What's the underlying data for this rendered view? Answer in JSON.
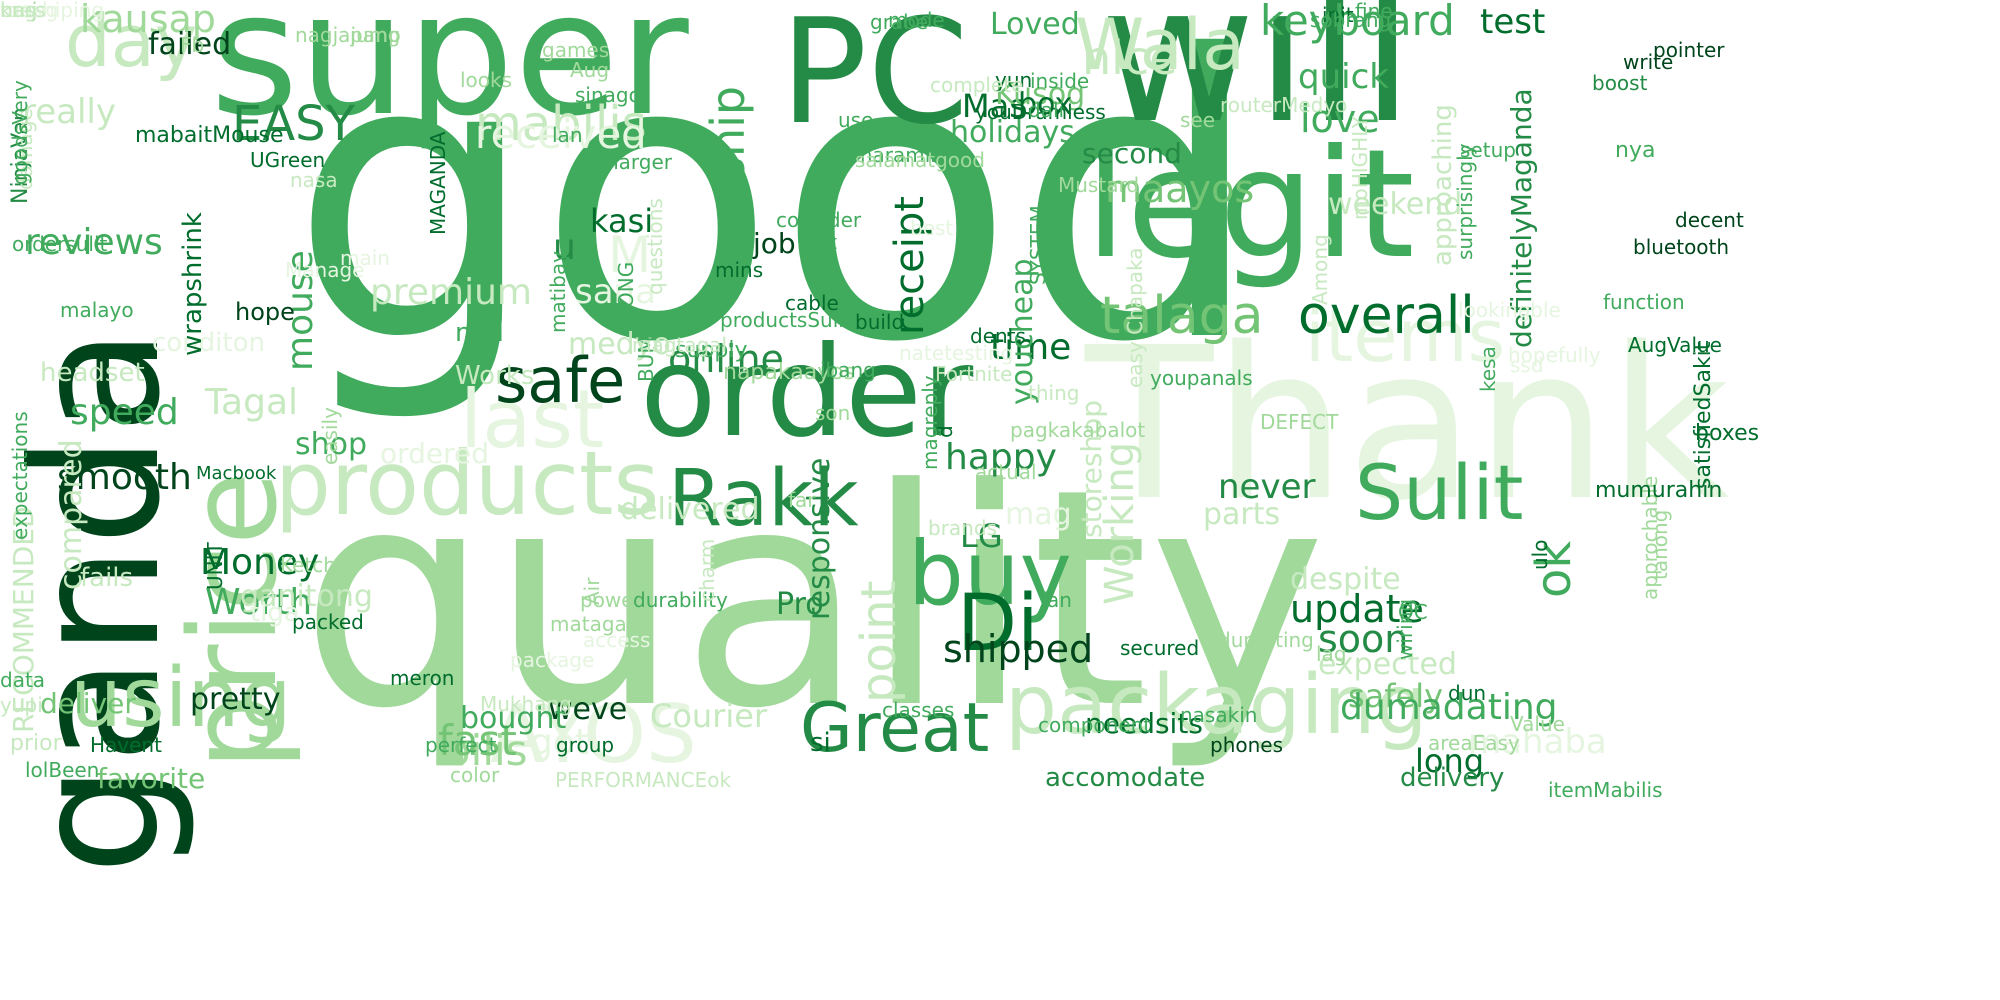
{
  "palette": {
    "darkest": "#00441b",
    "dark": "#006d2c",
    "mid_dark": "#238b45",
    "mid": "#41ab5d",
    "mid_light": "#74c476",
    "light": "#a1d99b",
    "lighter": "#c7e9c0",
    "lightest": "#e5f5e0",
    "background": "#ffffff"
  },
  "words": [
    {
      "text": "good",
      "color": "#41ab5d"
    },
    {
      "text": "quality",
      "color": "#a1d99b"
    },
    {
      "text": "ganda",
      "color": "#00441b"
    },
    {
      "text": "super",
      "color": "#41ab5d"
    },
    {
      "text": "Thank",
      "color": "#e5f5e0"
    },
    {
      "text": "will",
      "color": "#238b45"
    },
    {
      "text": "PC",
      "color": "#238b45"
    },
    {
      "text": "legit",
      "color": "#41ab5d"
    },
    {
      "text": "order",
      "color": "#238b45"
    },
    {
      "text": "price",
      "color": "#a1d99b"
    },
    {
      "text": "products",
      "color": "#c7e9c0"
    },
    {
      "text": "packaging",
      "color": "#c7e9c0"
    },
    {
      "text": "Great",
      "color": "#238b45"
    },
    {
      "text": "buy",
      "color": "#41ab5d"
    },
    {
      "text": "using",
      "color": "#a1d99b"
    },
    {
      "text": "Rakk",
      "color": "#238b45"
    },
    {
      "text": "Sulit",
      "color": "#41ab5d"
    },
    {
      "text": "Di",
      "color": "#006d2c"
    },
    {
      "text": "day",
      "color": "#c7e9c0"
    },
    {
      "text": "Wala",
      "color": "#c7e9c0"
    },
    {
      "text": "last",
      "color": "#e5f5e0"
    },
    {
      "text": "safe",
      "color": "#00441b"
    },
    {
      "text": "items",
      "color": "#e5f5e0"
    },
    {
      "text": "talaga",
      "color": "#74c476"
    },
    {
      "text": "overall",
      "color": "#006d2c"
    },
    {
      "text": "keyboard",
      "color": "#41ab5d"
    },
    {
      "text": "test",
      "color": "#006d2c"
    },
    {
      "text": "AYOS",
      "color": "#e5f5e0"
    },
    {
      "text": "Working",
      "color": "#c7e9c0"
    },
    {
      "text": "mabilis",
      "color": "#c7e9c0"
    },
    {
      "text": "EASY",
      "color": "#238b45"
    },
    {
      "text": "nice",
      "color": "#c7e9c0"
    },
    {
      "text": "ok",
      "color": "#41ab5d"
    },
    {
      "text": "love",
      "color": "#41ab5d"
    },
    {
      "text": "ship",
      "color": "#41ab5d"
    },
    {
      "text": "received",
      "color": "#e5f5e0"
    },
    {
      "text": "maayos",
      "color": "#74c476"
    },
    {
      "text": "receipt",
      "color": "#006d2c"
    },
    {
      "text": "online",
      "color": "#238b45"
    },
    {
      "text": "time",
      "color": "#006d2c"
    },
    {
      "text": "point",
      "color": "#c7e9c0"
    },
    {
      "text": "update",
      "color": "#006d2c"
    },
    {
      "text": "soon",
      "color": "#238b45"
    },
    {
      "text": "shipped",
      "color": "#00441b"
    },
    {
      "text": "Money",
      "color": "#006d2c"
    },
    {
      "text": "Worth",
      "color": "#41ab5d"
    },
    {
      "text": "smooth",
      "color": "#00441b"
    },
    {
      "text": "speed",
      "color": "#41ab5d"
    },
    {
      "text": "reviews",
      "color": "#41ab5d"
    },
    {
      "text": "premium",
      "color": "#c7e9c0"
    },
    {
      "text": "mouse",
      "color": "#41ab5d"
    },
    {
      "text": "happy",
      "color": "#238b45"
    },
    {
      "text": "Tagal",
      "color": "#c7e9c0"
    },
    {
      "text": "bilis",
      "color": "#a1d99b"
    },
    {
      "text": "fast",
      "color": "#74c476"
    },
    {
      "text": "pretty",
      "color": "#00441b"
    },
    {
      "text": "Courier",
      "color": "#c7e9c0"
    },
    {
      "text": "weve",
      "color": "#00441b"
    },
    {
      "text": "kausap",
      "color": "#a1d99b"
    },
    {
      "text": "Mas",
      "color": "#006d2c"
    },
    {
      "text": "holidays",
      "color": "#41ab5d"
    },
    {
      "text": "Kusog",
      "color": "#74c476"
    },
    {
      "text": "Loved",
      "color": "#41ab5d"
    },
    {
      "text": "box",
      "color": "#006d2c"
    },
    {
      "text": "second",
      "color": "#238b45"
    },
    {
      "text": "failed",
      "color": "#00441b"
    },
    {
      "text": "really",
      "color": "#c7e9c0"
    },
    {
      "text": "quick",
      "color": "#41ab5d"
    },
    {
      "text": "weekend",
      "color": "#c7e9c0"
    },
    {
      "text": "approaching",
      "color": "#c7e9c0"
    },
    {
      "text": "definitelyMaganda",
      "color": "#238b45"
    },
    {
      "text": "kasi",
      "color": "#006d2c"
    },
    {
      "text": "u",
      "color": "#238b45"
    },
    {
      "text": "M",
      "color": "#e5f5e0"
    },
    {
      "text": "sana",
      "color": "#e5f5e0"
    },
    {
      "text": "job",
      "color": "#00441b"
    },
    {
      "text": "youcheap",
      "color": "#41ab5d"
    },
    {
      "text": "storeshop",
      "color": "#c7e9c0"
    },
    {
      "text": "never",
      "color": "#238b45"
    },
    {
      "text": "parts",
      "color": "#c7e9c0"
    },
    {
      "text": "despite",
      "color": "#c7e9c0"
    },
    {
      "text": "expected",
      "color": "#c7e9c0"
    },
    {
      "text": "safely",
      "color": "#74c476"
    },
    {
      "text": "long",
      "color": "#006d2c"
    },
    {
      "text": "LG",
      "color": "#238b45"
    },
    {
      "text": "Pro",
      "color": "#238b45"
    },
    {
      "text": "responsive",
      "color": "#238b45"
    },
    {
      "text": "needsits",
      "color": "#006d2c"
    },
    {
      "text": "accomodate",
      "color": "#238b45"
    },
    {
      "text": "delivery",
      "color": "#238b45"
    },
    {
      "text": "si",
      "color": "#006d2c"
    },
    {
      "text": "got",
      "color": "#e5f5e0"
    },
    {
      "text": "bought",
      "color": "#41ab5d"
    },
    {
      "text": "favorite",
      "color": "#74c476"
    },
    {
      "text": "deliver",
      "color": "#74c476"
    },
    {
      "text": "RECOMMENDED",
      "color": "#c7e9c0"
    },
    {
      "text": "compared",
      "color": "#c7e9c0"
    },
    {
      "text": "headset",
      "color": "#c7e9c0"
    },
    {
      "text": "shop",
      "color": "#41ab5d"
    },
    {
      "text": "ordered",
      "color": "#e5f5e0"
    },
    {
      "text": "delivered",
      "color": "#c7e9c0"
    },
    {
      "text": "dumadating",
      "color": "#41ab5d"
    },
    {
      "text": "mahaba",
      "color": "#e5f5e0"
    },
    {
      "text": "mag",
      "color": "#e5f5e0"
    },
    {
      "text": "nad",
      "color": "#41ab5d"
    },
    {
      "text": "Works",
      "color": "#c7e9c0"
    },
    {
      "text": "medyo",
      "color": "#c7e9c0"
    },
    {
      "text": "ganitong",
      "color": "#c7e9c0"
    },
    {
      "text": "tlga",
      "color": "#e5f5e0"
    },
    {
      "text": "fails",
      "color": "#c7e9c0"
    },
    {
      "text": "prior",
      "color": "#c7e9c0"
    },
    {
      "text": "conditon",
      "color": "#e5f5e0"
    },
    {
      "text": "hope",
      "color": "#00441b"
    },
    {
      "text": "wrapshrink",
      "color": "#006d2c"
    },
    {
      "text": "NinjaVan",
      "color": "#238b45"
    },
    {
      "text": "ordersulit",
      "color": "#41ab5d"
    },
    {
      "text": "mabaitMouse",
      "color": "#006d2c"
    },
    {
      "text": "UGreen",
      "color": "#006d2c"
    },
    {
      "text": "maraming",
      "color": "#41ab5d"
    },
    {
      "text": "charger",
      "color": "#41ab5d"
    },
    {
      "text": "consider",
      "color": "#41ab5d"
    },
    {
      "text": "yet",
      "color": "#41ab5d"
    },
    {
      "text": "cable",
      "color": "#006d2c"
    },
    {
      "text": "build",
      "color": "#006d2c"
    },
    {
      "text": "SYSTEM",
      "color": "#41ab5d"
    },
    {
      "text": "BUMILI",
      "color": "#41ab5d"
    },
    {
      "text": "supply",
      "color": "#41ab5d"
    },
    {
      "text": "napakaayos",
      "color": "#a1d99b"
    },
    {
      "text": "ibang",
      "color": "#41ab5d"
    },
    {
      "text": "dents",
      "color": "#006d2c"
    },
    {
      "text": "youpanals",
      "color": "#41ab5d"
    },
    {
      "text": "DEFECT",
      "color": "#a1d99b"
    },
    {
      "text": "kesa",
      "color": "#41ab5d"
    },
    {
      "text": "ulo",
      "color": "#006d2c"
    },
    {
      "text": "tanong",
      "color": "#a1d99b"
    },
    {
      "text": "approchable",
      "color": "#a1d99b"
    },
    {
      "text": "mumurahin",
      "color": "#006d2c"
    },
    {
      "text": "satisfiedSakit",
      "color": "#006d2c"
    },
    {
      "text": "boxes",
      "color": "#006d2c"
    },
    {
      "text": "AugValue",
      "color": "#006d2c"
    },
    {
      "text": "function",
      "color": "#41ab5d"
    },
    {
      "text": "bluetooth",
      "color": "#00441b"
    },
    {
      "text": "decent",
      "color": "#00441b"
    },
    {
      "text": "write",
      "color": "#00441b"
    },
    {
      "text": "nya",
      "color": "#41ab5d"
    },
    {
      "text": "pointer",
      "color": "#00441b"
    },
    {
      "text": "boost",
      "color": "#238b45"
    },
    {
      "text": "fine",
      "color": "#41ab5d"
    },
    {
      "text": "init",
      "color": "#006d2c"
    },
    {
      "text": "sobrang",
      "color": "#41ab5d"
    },
    {
      "text": "yun",
      "color": "#006d2c"
    },
    {
      "text": "inside",
      "color": "#41ab5d"
    },
    {
      "text": "Mustard",
      "color": "#a1d99b"
    },
    {
      "text": "youDramless",
      "color": "#006d2c"
    },
    {
      "text": "see",
      "color": "#a1d99b"
    },
    {
      "text": "use",
      "color": "#41ab5d"
    },
    {
      "text": "mode",
      "color": "#41ab5d"
    },
    {
      "text": "dali",
      "color": "#41ab5d"
    },
    {
      "text": "grabe",
      "color": "#41ab5d"
    },
    {
      "text": "sinagot",
      "color": "#41ab5d"
    },
    {
      "text": "lan",
      "color": "#41ab5d"
    },
    {
      "text": "Aug",
      "color": "#a1d99b"
    },
    {
      "text": "games",
      "color": "#a1d99b"
    },
    {
      "text": "looks",
      "color": "#a1d99b"
    },
    {
      "text": "nagjajump",
      "color": "#a1d99b"
    },
    {
      "text": "Fb",
      "color": "#a1d99b"
    },
    {
      "text": "damage",
      "color": "#c7e9c0"
    },
    {
      "text": "pang",
      "color": "#a1d99b"
    },
    {
      "text": "malayo",
      "color": "#41ab5d"
    },
    {
      "text": "goodsVery",
      "color": "#41ab5d"
    },
    {
      "text": "MAGANDA",
      "color": "#006d2c"
    },
    {
      "text": "PONG",
      "color": "#41ab5d"
    },
    {
      "text": "questions",
      "color": "#c7e9c0"
    },
    {
      "text": "mins",
      "color": "#006d2c"
    },
    {
      "text": "productsSulit",
      "color": "#41ab5d"
    },
    {
      "text": "magtagal",
      "color": "#c7e9c0"
    },
    {
      "text": "matibay",
      "color": "#41ab5d"
    },
    {
      "text": "easily",
      "color": "#a1d99b"
    },
    {
      "text": "expectations",
      "color": "#41ab5d"
    },
    {
      "text": "Macbook",
      "color": "#006d2c"
    },
    {
      "text": "Ketchup",
      "color": "#a1d99b"
    },
    {
      "text": "UNIT",
      "color": "#006d2c"
    },
    {
      "text": "data",
      "color": "#41ab5d"
    },
    {
      "text": "packed",
      "color": "#006d2c"
    },
    {
      "text": "perfect",
      "color": "#41ab5d"
    },
    {
      "text": "matagal",
      "color": "#a1d99b"
    },
    {
      "text": "power",
      "color": "#a1d99b"
    },
    {
      "text": "durability",
      "color": "#41ab5d"
    },
    {
      "text": "access",
      "color": "#e5f5e0"
    },
    {
      "text": "Air",
      "color": "#a1d99b"
    },
    {
      "text": "package",
      "color": "#e5f5e0"
    },
    {
      "text": "meron",
      "color": "#006d2c"
    },
    {
      "text": "Mukhang",
      "color": "#c7e9c0"
    },
    {
      "text": "yupi",
      "color": "#c7e9c0"
    },
    {
      "text": "lolBeen",
      "color": "#41ab5d"
    },
    {
      "text": "Havent",
      "color": "#006d2c"
    },
    {
      "text": "color",
      "color": "#a1d99b"
    },
    {
      "text": "group",
      "color": "#006d2c"
    },
    {
      "text": "PERFORMANCEok",
      "color": "#c7e9c0"
    },
    {
      "text": "classes",
      "color": "#41ab5d"
    },
    {
      "text": "component",
      "color": "#41ab5d"
    },
    {
      "text": "nasakin",
      "color": "#41ab5d"
    },
    {
      "text": "phones",
      "color": "#00441b"
    },
    {
      "text": "areaEasy",
      "color": "#a1d99b"
    },
    {
      "text": "itemMabilis",
      "color": "#41ab5d"
    },
    {
      "text": "Value",
      "color": "#a1d99b"
    },
    {
      "text": "QC",
      "color": "#41ab5d"
    },
    {
      "text": "dun",
      "color": "#006d2c"
    },
    {
      "text": "wiring",
      "color": "#41ab5d"
    },
    {
      "text": "lag",
      "color": "#a1d99b"
    },
    {
      "text": "secured",
      "color": "#006d2c"
    },
    {
      "text": "dumating",
      "color": "#a1d99b"
    },
    {
      "text": "fan",
      "color": "#41ab5d"
    },
    {
      "text": "brands",
      "color": "#c7e9c0"
    },
    {
      "text": "actual",
      "color": "#a1d99b"
    },
    {
      "text": "son",
      "color": "#a1d99b"
    },
    {
      "text": "far",
      "color": "#a1d99b"
    },
    {
      "text": "magreply",
      "color": "#41ab5d"
    },
    {
      "text": "pagkakabalot",
      "color": "#a1d99b"
    },
    {
      "text": "charm",
      "color": "#c7e9c0"
    },
    {
      "text": "d",
      "color": "#006d2c"
    },
    {
      "text": "natetesting",
      "color": "#e5f5e0"
    },
    {
      "text": "Fortnite",
      "color": "#c7e9c0"
    },
    {
      "text": "easy Chapaka",
      "color": "#c7e9c0"
    },
    {
      "text": "Among",
      "color": "#c7e9c0"
    },
    {
      "text": "moHIGHLY",
      "color": "#c7e9c0"
    },
    {
      "text": "surprisingly",
      "color": "#41ab5d"
    },
    {
      "text": "setup",
      "color": "#41ab5d"
    },
    {
      "text": "routerMedyo",
      "color": "#c7e9c0"
    },
    {
      "text": "complete",
      "color": "#c7e9c0"
    },
    {
      "text": "salamatgood",
      "color": "#a1d99b"
    },
    {
      "text": "best",
      "color": "#e5f5e0"
    },
    {
      "text": "nasa",
      "color": "#c7e9c0"
    },
    {
      "text": "main",
      "color": "#e5f5e0"
    },
    {
      "text": "Manage",
      "color": "#e5f5e0"
    },
    {
      "text": "thing",
      "color": "#c7e9c0"
    },
    {
      "text": "looking",
      "color": "#e5f5e0"
    },
    {
      "text": "able",
      "color": "#e5f5e0"
    },
    {
      "text": "ssd",
      "color": "#e5f5e0"
    },
    {
      "text": "hopefully",
      "color": "#e5f5e0"
    },
    {
      "text": "tunog",
      "color": "#e5f5e0"
    },
    {
      "text": "mej",
      "color": "#a1d99b"
    },
    {
      "text": "mashiping",
      "color": "#e5f5e0"
    },
    {
      "text": "bass",
      "color": "#c7e9c0"
    },
    {
      "text": "kng",
      "color": "#c7e9c0"
    }
  ]
}
